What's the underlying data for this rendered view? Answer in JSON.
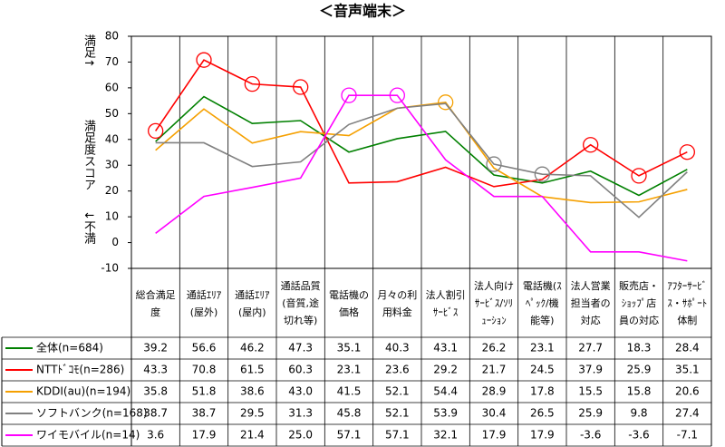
{
  "chart_data": {
    "type": "line",
    "title": "＜音声端末＞",
    "y_label": [
      "満足↑",
      "満足度スコア",
      "↓不満"
    ],
    "categories": [
      "総合満足度",
      "通話ｴﾘｱ(屋外)",
      "通話ｴﾘｱ(屋内)",
      "通話品質(音質,途切れ等)",
      "電話機の価格",
      "月々の利用料金",
      "法人割引ｻｰﾋﾞｽ",
      "法人向けｻｰﾋﾞｽ/ｿﾘｭｰｼｮﾝ",
      "電話機(ｽﾍﾟｯｸ/機能等)",
      "法人営業担当者の対応",
      "販売店・ｼｮｯﾌﾟ店員の対応",
      "ｱﾌﾀｰｻｰﾋﾞｽ・ｻﾎﾟｰﾄ体制"
    ],
    "ylim": [
      -10,
      80
    ],
    "yticks": [
      -10,
      0,
      10,
      20,
      30,
      40,
      50,
      60,
      70,
      80
    ],
    "grid": false,
    "series": [
      {
        "name": "全体(n=684)",
        "color": "#008000",
        "values": [
          39.2,
          56.6,
          46.2,
          47.3,
          35.1,
          40.3,
          43.1,
          26.2,
          23.1,
          27.7,
          18.3,
          28.4
        ],
        "value_labels": [
          "39.2",
          "56.6",
          "46.2",
          "47.3",
          "35.1",
          "40.3",
          "43.1",
          "26.2",
          "23.1",
          "27.7",
          "18.3",
          "28.4"
        ],
        "highlight": []
      },
      {
        "name": "NTTﾄﾞｺﾓ(n=286)",
        "color": "#ff0000",
        "values": [
          43.3,
          70.8,
          61.5,
          60.3,
          23.1,
          23.6,
          29.2,
          21.7,
          24.5,
          37.9,
          25.9,
          35.1
        ],
        "value_labels": [
          "43.3",
          "70.8",
          "61.5",
          "60.3",
          "23.1",
          "23.6",
          "29.2",
          "21.7",
          "24.5",
          "37.9",
          "25.9",
          "35.1"
        ],
        "highlight": [
          0,
          1,
          2,
          3,
          9,
          10,
          11
        ]
      },
      {
        "name": "KDDI(au)(n=194)",
        "color": "#f5a000",
        "values": [
          35.8,
          51.8,
          38.6,
          43.0,
          41.5,
          52.1,
          54.4,
          28.9,
          17.8,
          15.5,
          15.8,
          20.6
        ],
        "value_labels": [
          "35.8",
          "51.8",
          "38.6",
          "43.0",
          "41.5",
          "52.1",
          "54.4",
          "28.9",
          "17.8",
          "15.5",
          "15.8",
          "20.6"
        ],
        "highlight": [
          6
        ]
      },
      {
        "name": "ソフトバンク(n=168)",
        "color": "#808080",
        "values": [
          38.7,
          38.7,
          29.5,
          31.3,
          45.8,
          52.1,
          53.9,
          30.4,
          26.5,
          25.9,
          9.8,
          27.4
        ],
        "value_labels": [
          "38.7",
          "38.7",
          "29.5",
          "31.3",
          "45.8",
          "52.1",
          "53.9",
          "30.4",
          "26.5",
          "25.9",
          "9.8",
          "27.4"
        ],
        "highlight": [
          7,
          8
        ]
      },
      {
        "name": "ワイモバイル(n=14)",
        "color": "#ff00ff",
        "values": [
          3.6,
          17.9,
          21.4,
          25.0,
          57.1,
          57.1,
          32.1,
          17.9,
          17.9,
          -3.6,
          -3.6,
          -7.1
        ],
        "value_labels": [
          "3.6",
          "17.9",
          "21.4",
          "25.0",
          "57.1",
          "57.1",
          "32.1",
          "17.9",
          "17.9",
          "-3.6",
          "-3.6",
          "-7.1"
        ],
        "highlight": [
          4,
          5
        ]
      }
    ]
  }
}
